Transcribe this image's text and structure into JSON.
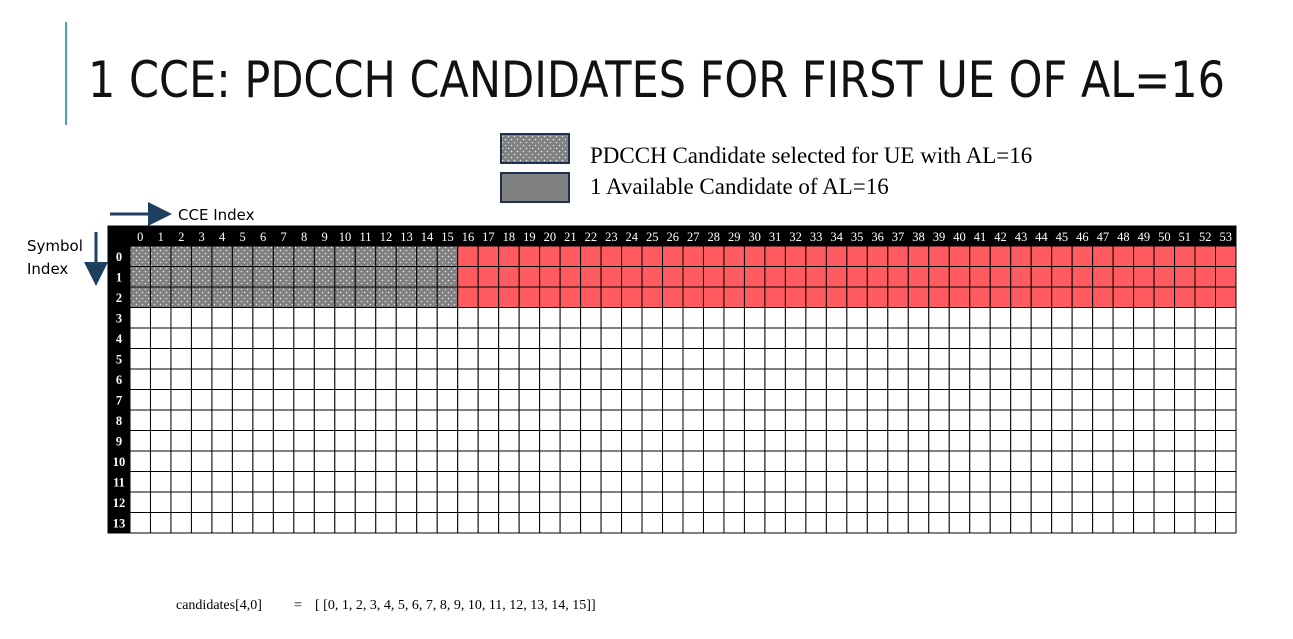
{
  "header": {
    "title": "1 CCE: PDCCH CANDIDATES FOR FIRST UE OF AL=16"
  },
  "legend": [
    {
      "label": "PDCCH Candidate selected for UE with AL=16",
      "color": "#808080",
      "pattern": "dots"
    },
    {
      "label": "1 Available Candidate of AL=16",
      "color": "#808080"
    }
  ],
  "axes": {
    "x_label": "CCE Index",
    "y_label": [
      "Symbol",
      "Index"
    ]
  },
  "grid": {
    "columns": [
      0,
      1,
      2,
      3,
      4,
      5,
      6,
      7,
      8,
      9,
      10,
      11,
      12,
      13,
      14,
      15,
      16,
      17,
      18,
      19,
      20,
      21,
      22,
      23,
      24,
      25,
      26,
      27,
      28,
      29,
      30,
      31,
      32,
      33,
      34,
      35,
      36,
      37,
      38,
      39,
      40,
      41,
      42,
      43,
      44,
      45,
      46,
      47,
      48,
      49,
      50,
      51,
      52,
      53
    ],
    "rows": [
      0,
      1,
      2,
      3,
      4,
      5,
      6,
      7,
      8,
      9,
      10,
      11,
      12,
      13
    ],
    "selected_color": "#808080",
    "available_color": "#ff5b61"
  },
  "footer": {
    "name": "candidates[4,0]",
    "equals": "=",
    "value": "[ [0, 1, 2, 3, 4, 5, 6, 7, 8, 9, 10, 11, 12, 13, 14, 15]]"
  }
}
